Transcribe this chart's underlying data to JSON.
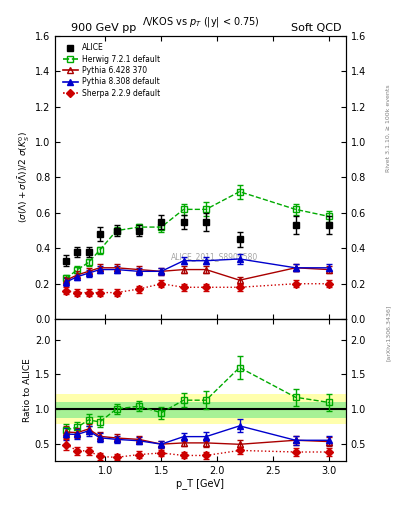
{
  "title_top": "900 GeV pp",
  "title_right": "Soft QCD",
  "subtitle": "Λ/KOS vs p_T (|y| < 0.75)",
  "ylabel_main": "(σ(Λ)+σ(Λ̅))/2 σ(K°_S)",
  "ylabel_ratio": "Ratio to ALICE",
  "xlabel": "p_T [GeV]",
  "watermark": "ALICE_2011_S8909580",
  "rivet_label": "Rivet 3.1.10, ≥ 100k events",
  "arxiv_label": "[arXiv:1306.3436]",
  "alice_x": [
    0.65,
    0.75,
    0.85,
    0.95,
    1.1,
    1.3,
    1.5,
    1.7,
    1.9,
    2.2,
    2.7,
    3.0
  ],
  "alice_y": [
    0.33,
    0.38,
    0.38,
    0.48,
    0.5,
    0.5,
    0.55,
    0.55,
    0.55,
    0.45,
    0.53,
    0.53
  ],
  "alice_yerr": [
    0.03,
    0.03,
    0.03,
    0.04,
    0.03,
    0.03,
    0.04,
    0.04,
    0.05,
    0.04,
    0.05,
    0.05
  ],
  "herwig_x": [
    0.65,
    0.75,
    0.85,
    0.95,
    1.1,
    1.3,
    1.5,
    1.7,
    1.9,
    2.2,
    2.7,
    3.0
  ],
  "herwig_y": [
    0.23,
    0.28,
    0.32,
    0.39,
    0.5,
    0.52,
    0.52,
    0.62,
    0.62,
    0.72,
    0.62,
    0.58
  ],
  "herwig_yerr": [
    0.02,
    0.02,
    0.02,
    0.02,
    0.02,
    0.02,
    0.03,
    0.03,
    0.04,
    0.04,
    0.03,
    0.03
  ],
  "pythia6_x": [
    0.65,
    0.75,
    0.85,
    0.95,
    1.1,
    1.3,
    1.5,
    1.7,
    1.9,
    2.2,
    2.7,
    3.0
  ],
  "pythia6_y": [
    0.22,
    0.25,
    0.27,
    0.29,
    0.29,
    0.28,
    0.27,
    0.28,
    0.28,
    0.22,
    0.29,
    0.28
  ],
  "pythia6_yerr": [
    0.02,
    0.02,
    0.02,
    0.02,
    0.02,
    0.02,
    0.02,
    0.02,
    0.02,
    0.02,
    0.02,
    0.02
  ],
  "pythia8_x": [
    0.65,
    0.75,
    0.85,
    0.95,
    1.1,
    1.3,
    1.5,
    1.7,
    1.9,
    2.2,
    2.7,
    3.0
  ],
  "pythia8_y": [
    0.21,
    0.24,
    0.26,
    0.28,
    0.28,
    0.27,
    0.27,
    0.33,
    0.33,
    0.34,
    0.29,
    0.29
  ],
  "pythia8_yerr": [
    0.02,
    0.02,
    0.02,
    0.02,
    0.02,
    0.02,
    0.02,
    0.02,
    0.02,
    0.03,
    0.02,
    0.02
  ],
  "sherpa_x": [
    0.65,
    0.75,
    0.85,
    0.95,
    1.1,
    1.3,
    1.5,
    1.7,
    1.9,
    2.2,
    2.7,
    3.0
  ],
  "sherpa_y": [
    0.16,
    0.15,
    0.15,
    0.15,
    0.15,
    0.17,
    0.2,
    0.18,
    0.18,
    0.18,
    0.2,
    0.2
  ],
  "sherpa_yerr": [
    0.02,
    0.02,
    0.02,
    0.02,
    0.02,
    0.02,
    0.02,
    0.02,
    0.02,
    0.02,
    0.02,
    0.02
  ],
  "alice_color": "#000000",
  "herwig_color": "#00aa00",
  "pythia6_color": "#aa0000",
  "pythia8_color": "#0000cc",
  "sherpa_color": "#cc0000",
  "band_green_lo": 0.87,
  "band_green_hi": 1.1,
  "band_yellow_lo": 0.78,
  "band_yellow_hi": 1.22,
  "xlim": [
    0.55,
    3.15
  ],
  "ylim_main": [
    0.0,
    1.6
  ],
  "ylim_ratio": [
    0.25,
    2.3
  ]
}
